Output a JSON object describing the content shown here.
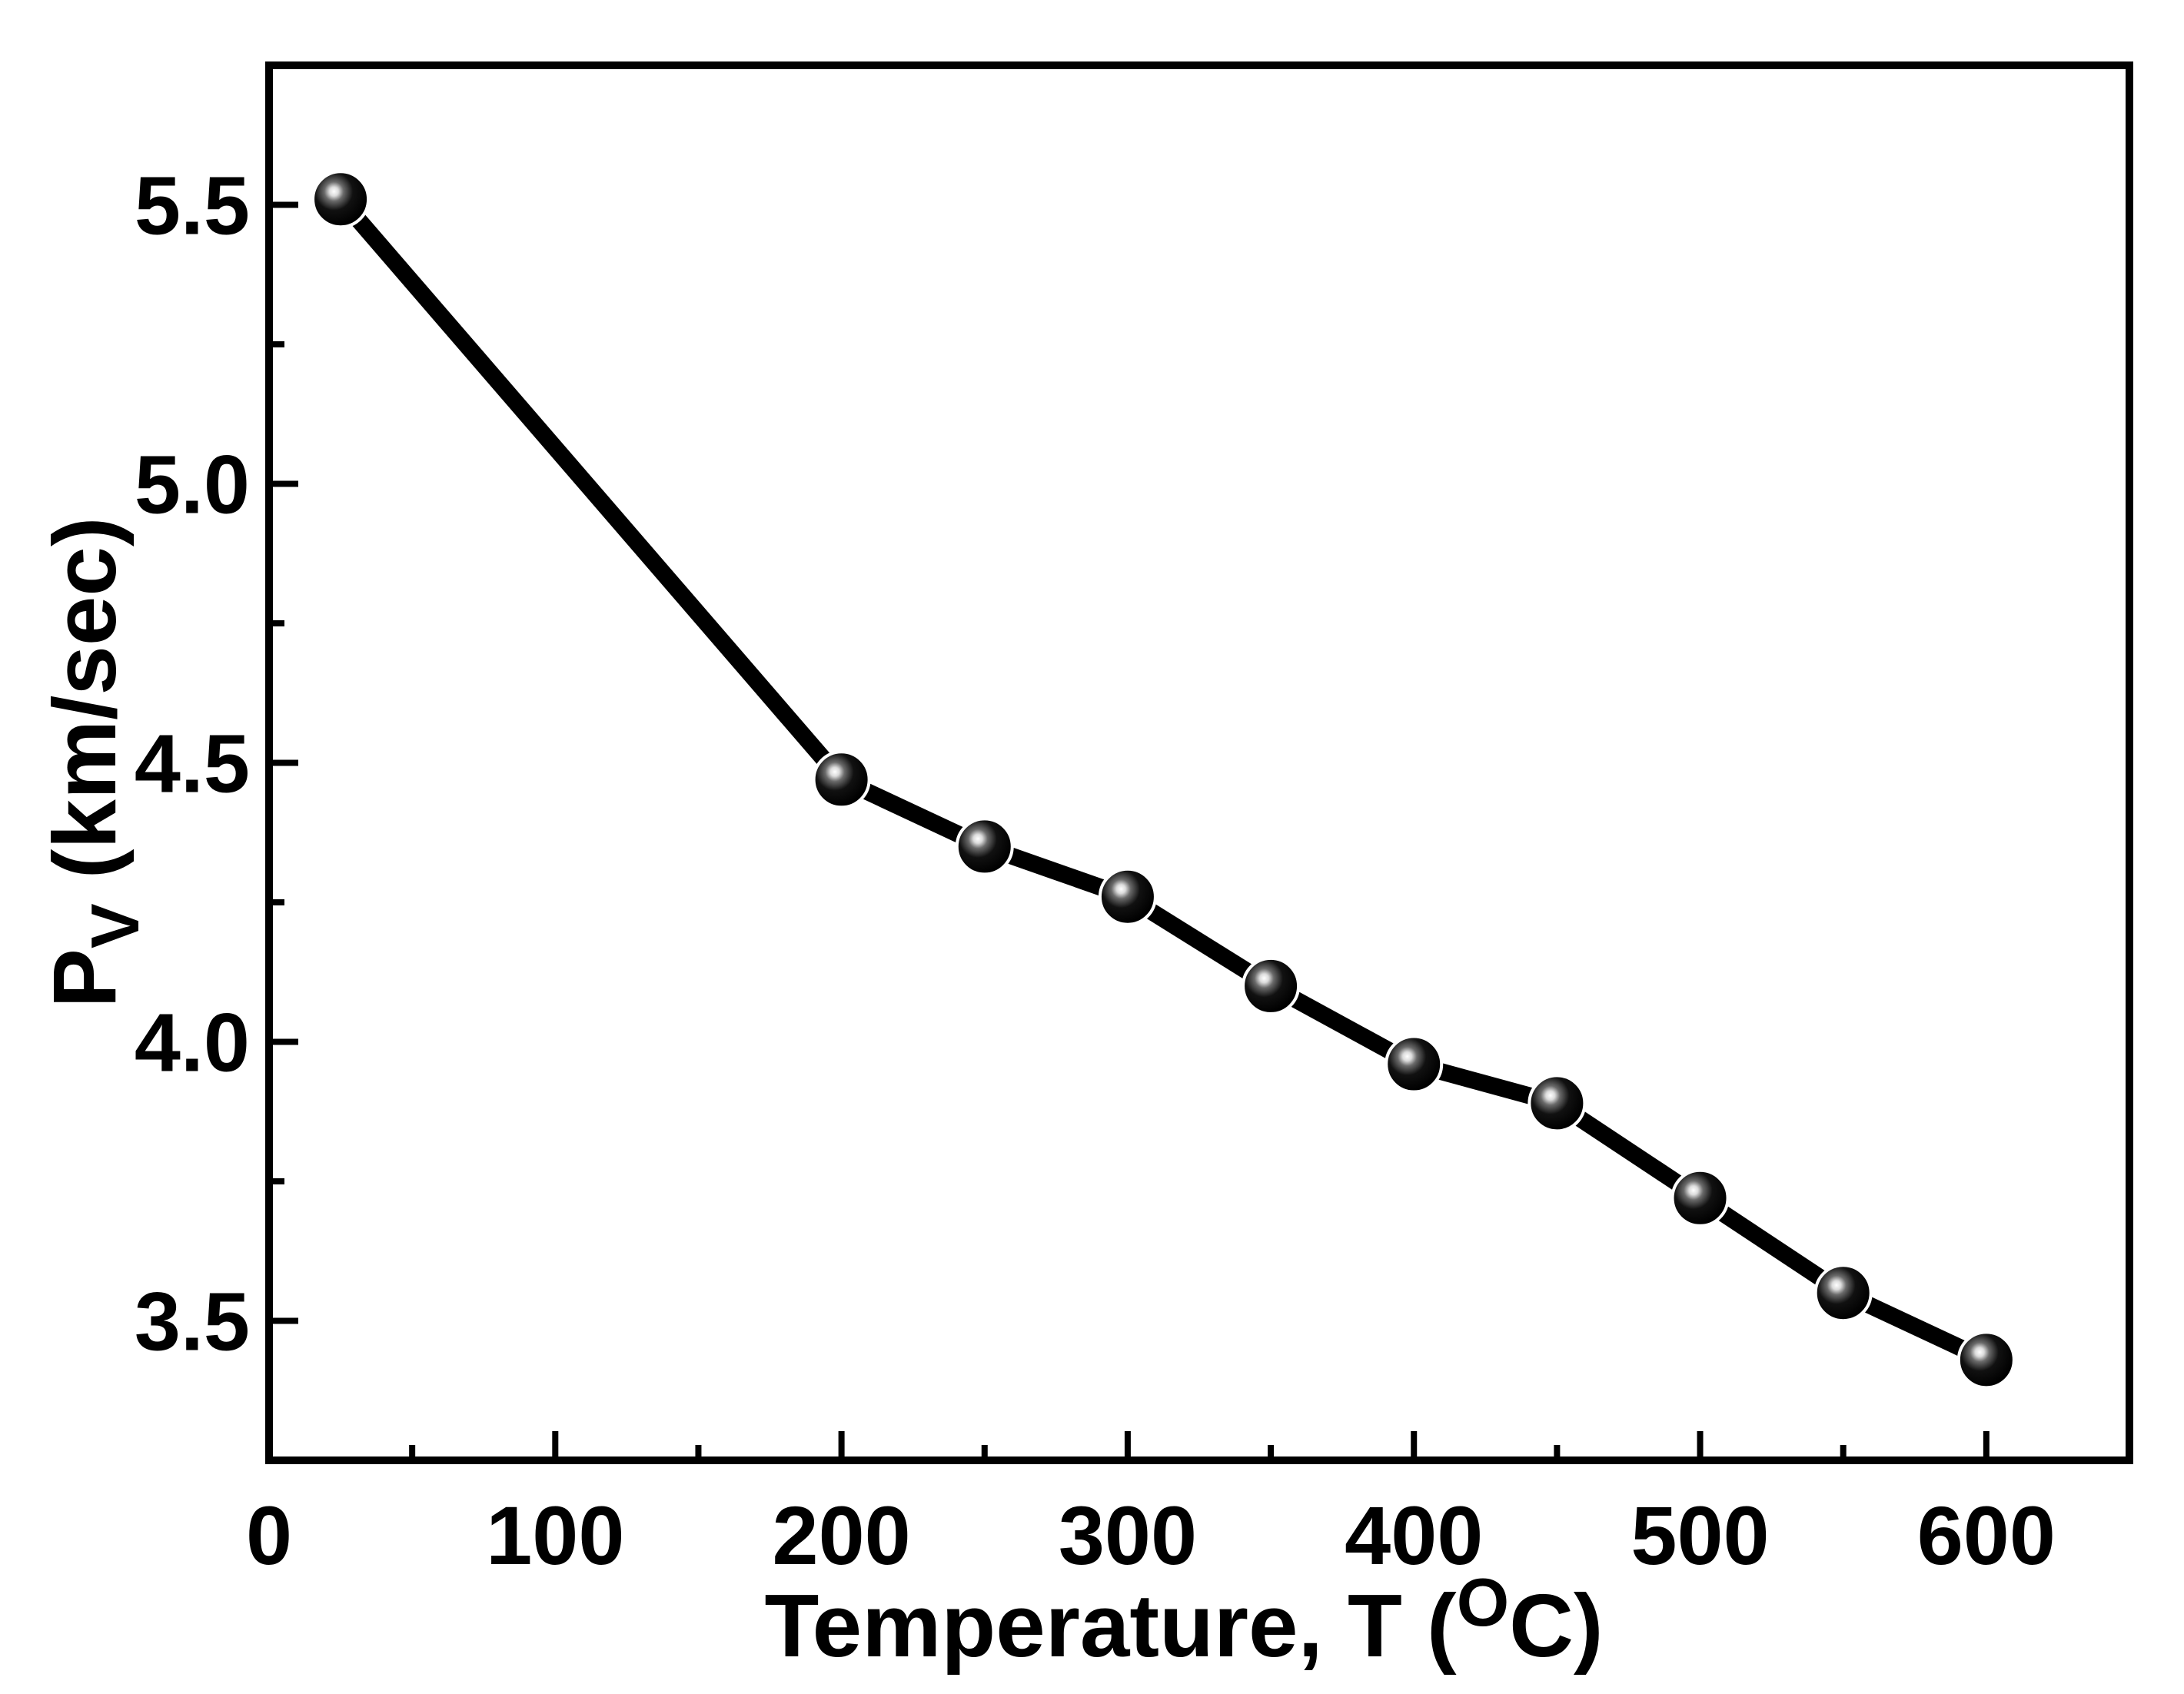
{
  "chart_data": {
    "type": "line",
    "title": "",
    "xlabel": {
      "main": "Temperature, T (",
      "superscript": "O",
      "unit": "C",
      "close": ")"
    },
    "ylabel": {
      "main": "P",
      "subscript": "V",
      "unit": " (km/sec)"
    },
    "xlim": [
      0,
      650
    ],
    "ylim": [
      3.25,
      5.75
    ],
    "xticks": [
      0,
      100,
      200,
      300,
      400,
      500,
      600
    ],
    "xtick_labels": [
      "0",
      "100",
      "200",
      "300",
      "400",
      "500",
      "600"
    ],
    "xminor": [
      50,
      150,
      250,
      350,
      450,
      550
    ],
    "yticks": [
      3.5,
      4.0,
      4.5,
      5.0,
      5.5
    ],
    "ytick_labels": [
      "3.5",
      "4.0",
      "4.5",
      "5.0",
      "5.5"
    ],
    "yminor": [
      3.75,
      4.25,
      4.75,
      5.25
    ],
    "grid": false,
    "legend": "none",
    "series": [
      {
        "name": "Pv",
        "color": "#000000",
        "marker": "sphere",
        "x": [
          25,
          200,
          250,
          300,
          350,
          400,
          450,
          500,
          550,
          600
        ],
        "y": [
          5.51,
          4.47,
          4.35,
          4.26,
          4.1,
          3.96,
          3.89,
          3.72,
          3.55,
          3.43
        ]
      }
    ]
  }
}
